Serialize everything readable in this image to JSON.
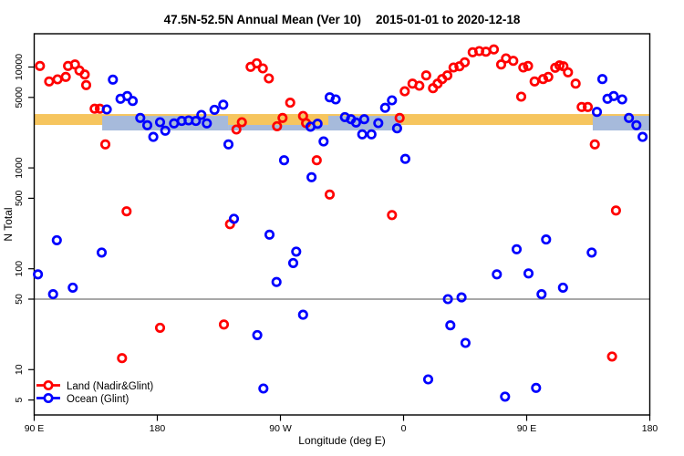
{
  "chart_data": {
    "type": "scatter",
    "title": {
      "main": "47.5N-52.5N Annual Mean (Ver 10)",
      "dates": "2015-01-01 to 2020-12-18"
    },
    "xlabel": "Longitude (deg E)",
    "ylabel": "N Total",
    "x_axis": {
      "note_range_continuous_deg_east": [
        90,
        540
      ],
      "ticks": [
        {
          "at": 90,
          "label": "90 E"
        },
        {
          "at": 180,
          "label": "180"
        },
        {
          "at": 270,
          "label": "90 W"
        },
        {
          "at": 360,
          "label": "0"
        },
        {
          "at": 450,
          "label": "90 E"
        },
        {
          "at": 540,
          "label": "180"
        }
      ]
    },
    "y_axis": {
      "scale": "log10",
      "ticks": [
        5,
        10,
        50,
        100,
        500,
        1000,
        5000,
        10000
      ],
      "range": [
        2.8,
        21500
      ]
    },
    "reference_line": {
      "value": 50,
      "color": "#a8a8a8"
    },
    "mean_bands": [
      {
        "name": "land-mean-band",
        "color": "#f6c55e",
        "value_top": 3420,
        "value_bottom": 2665,
        "segments_lon": [
          [
            90,
            540
          ]
        ]
      },
      {
        "name": "ocean-mean-band",
        "color": "#a6badb",
        "value_top": 3280,
        "value_bottom": 2350,
        "segments_lon": [
          [
            139.7,
            231.7
          ],
          [
            305,
            358.3
          ],
          [
            498.3,
            540
          ]
        ],
        "fringe_value_top": 2665,
        "fringe_segments_lon": [
          [
            231.7,
            305
          ]
        ]
      }
    ],
    "series": [
      {
        "name": "Land (Nadir&Glint)",
        "color": "#ff0000",
        "points": [
          [
            94.2,
            10260
          ],
          [
            100.9,
            7200
          ],
          [
            107.1,
            7550
          ],
          [
            113.1,
            7980
          ],
          [
            114.7,
            10260
          ],
          [
            119.8,
            10600
          ],
          [
            123.1,
            9240
          ],
          [
            126.9,
            8430
          ],
          [
            128.0,
            6620
          ],
          [
            134.2,
            3860
          ],
          [
            138.0,
            3860
          ],
          [
            142.0,
            1710
          ],
          [
            154.2,
            13
          ],
          [
            157.5,
            371
          ],
          [
            182.0,
            26
          ],
          [
            228.7,
            28
          ],
          [
            233.1,
            277
          ],
          [
            237.8,
            2400
          ],
          [
            241.8,
            2840
          ],
          [
            248.2,
            10050
          ],
          [
            252.7,
            10900
          ],
          [
            257.1,
            9690
          ],
          [
            261.5,
            7710
          ],
          [
            267.5,
            2590
          ],
          [
            271.5,
            3130
          ],
          [
            277.1,
            4430
          ],
          [
            286.5,
            3270
          ],
          [
            288.7,
            2780
          ],
          [
            296.5,
            1190
          ],
          [
            306.0,
            544
          ],
          [
            351.5,
            341
          ],
          [
            357.1,
            3130
          ],
          [
            360.9,
            5750
          ],
          [
            366.5,
            6840
          ],
          [
            371.5,
            6530
          ],
          [
            376.5,
            8260
          ],
          [
            381.5,
            6170
          ],
          [
            384.9,
            6840
          ],
          [
            388.2,
            7600
          ],
          [
            392.0,
            8260
          ],
          [
            396.5,
            9890
          ],
          [
            400.9,
            10160
          ],
          [
            404.7,
            11140
          ],
          [
            410.5,
            14000
          ],
          [
            415.3,
            14390
          ],
          [
            420.2,
            14190
          ],
          [
            426.0,
            14930
          ],
          [
            431.3,
            10600
          ],
          [
            434.9,
            12190
          ],
          [
            440.2,
            11510
          ],
          [
            446.0,
            5080
          ],
          [
            447.5,
            9890
          ],
          [
            451.0,
            10260
          ],
          [
            455.8,
            7200
          ],
          [
            462.0,
            7600
          ],
          [
            465.8,
            7980
          ],
          [
            470.9,
            9840
          ],
          [
            474.0,
            10380
          ],
          [
            476.9,
            10160
          ],
          [
            480.2,
            8870
          ],
          [
            485.8,
            6840
          ],
          [
            490.2,
            4020
          ],
          [
            494.7,
            4020
          ],
          [
            499.8,
            1710
          ],
          [
            512.4,
            13.5
          ],
          [
            515.3,
            378
          ]
        ]
      },
      {
        "name": "Ocean (Glint)",
        "color": "#0000ff",
        "points": [
          [
            92.7,
            88
          ],
          [
            103.8,
            56
          ],
          [
            106.5,
            192
          ],
          [
            118.2,
            65
          ],
          [
            139.3,
            145
          ],
          [
            143.1,
            3800
          ],
          [
            147.5,
            7500
          ],
          [
            153.1,
            4850
          ],
          [
            158.0,
            5160
          ],
          [
            162.0,
            4610
          ],
          [
            167.5,
            3130
          ],
          [
            172.7,
            2650
          ],
          [
            177.1,
            2030
          ],
          [
            182.0,
            2840
          ],
          [
            185.8,
            2340
          ],
          [
            192.2,
            2760
          ],
          [
            197.8,
            2920
          ],
          [
            202.9,
            2960
          ],
          [
            208.2,
            2920
          ],
          [
            212.2,
            3350
          ],
          [
            216.2,
            2760
          ],
          [
            221.8,
            3770
          ],
          [
            228.2,
            4230
          ],
          [
            232.0,
            1710
          ],
          [
            236.0,
            313
          ],
          [
            253.1,
            22
          ],
          [
            257.5,
            6.5
          ],
          [
            262.0,
            218
          ],
          [
            267.1,
            74
          ],
          [
            272.7,
            1190
          ],
          [
            279.3,
            114
          ],
          [
            281.5,
            148
          ],
          [
            286.5,
            35
          ],
          [
            292.0,
            2560
          ],
          [
            292.7,
            809
          ],
          [
            297.1,
            2740
          ],
          [
            301.5,
            1830
          ],
          [
            306.0,
            5010
          ],
          [
            310.4,
            4780
          ],
          [
            317.1,
            3190
          ],
          [
            321.5,
            3040
          ],
          [
            325.3,
            2820
          ],
          [
            329.8,
            2150
          ],
          [
            331.3,
            3040
          ],
          [
            336.5,
            2150
          ],
          [
            341.5,
            2780
          ],
          [
            346.5,
            3940
          ],
          [
            351.5,
            4680
          ],
          [
            355.3,
            2470
          ],
          [
            361.3,
            1230
          ],
          [
            378.0,
            8
          ],
          [
            392.4,
            50
          ],
          [
            394.2,
            27.5
          ],
          [
            402.4,
            52
          ],
          [
            405.3,
            18.4
          ],
          [
            428.2,
            88
          ],
          [
            434.2,
            5.4
          ],
          [
            442.7,
            156
          ],
          [
            451.3,
            90
          ],
          [
            456.9,
            6.6
          ],
          [
            460.9,
            56
          ],
          [
            464.2,
            195
          ],
          [
            476.5,
            65
          ],
          [
            497.5,
            145
          ],
          [
            501.3,
            3590
          ],
          [
            505.3,
            7600
          ],
          [
            509.1,
            4850
          ],
          [
            513.6,
            5160
          ],
          [
            519.8,
            4780
          ],
          [
            524.7,
            3130
          ],
          [
            530.2,
            2650
          ],
          [
            534.7,
            2030
          ]
        ]
      }
    ],
    "legend": {
      "position": "bottom-left"
    }
  }
}
